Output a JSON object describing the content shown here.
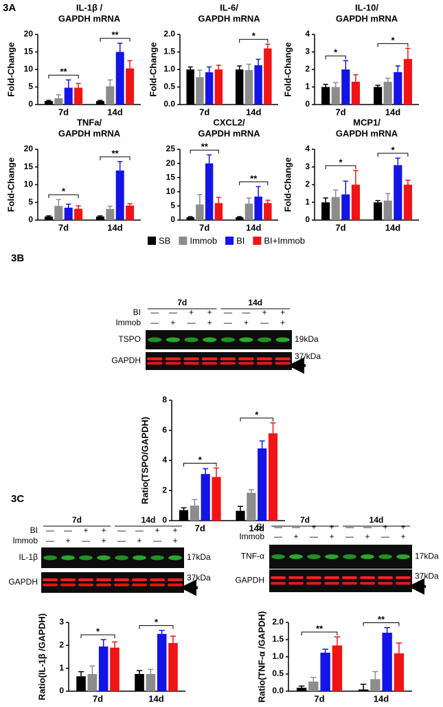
{
  "panels": [
    "3A",
    "3B",
    "3C"
  ],
  "legend": [
    {
      "name": "SB",
      "color": "#000000"
    },
    {
      "name": "Immob",
      "color": "#8c8c8c"
    },
    {
      "name": "BI",
      "color": "#1414e6"
    },
    {
      "name": "BI+Immob",
      "color": "#f01414"
    }
  ],
  "chart_data": [
    {
      "type": "bar",
      "title": [
        "IL-1β /",
        "GAPDH mRNA"
      ],
      "ylabel": "Fold-Change",
      "categories": [
        "7d",
        "14d"
      ],
      "ylim": [
        0,
        20
      ],
      "yticks": [
        0,
        5,
        10,
        15,
        20
      ],
      "series": [
        {
          "values": [
            1,
            1
          ],
          "errors": [
            0.2,
            0.2
          ]
        },
        {
          "values": [
            1.8,
            5.2
          ],
          "errors": [
            1,
            1.8
          ]
        },
        {
          "values": [
            4.8,
            15
          ],
          "errors": [
            2.2,
            2.5
          ]
        },
        {
          "values": [
            4.8,
            10.3
          ],
          "errors": [
            1.2,
            2.2
          ]
        }
      ],
      "annotations": [
        {
          "label": "**",
          "category": 0,
          "from": 0,
          "to": 3
        },
        {
          "label": "**",
          "category": 1,
          "from": 0,
          "to": 3
        }
      ]
    },
    {
      "type": "bar",
      "title": [
        "IL-6/",
        "GAPDH mRNA"
      ],
      "ylabel": "Fold-Change",
      "categories": [
        "7d",
        "14d"
      ],
      "ylim": [
        0,
        2
      ],
      "yticks": [
        {
          "value": 0,
          "label": "0.0"
        },
        0.5,
        {
          "value": 1,
          "label": "1.0"
        },
        1.5,
        {
          "value": 2,
          "label": "2.0"
        }
      ],
      "series": [
        {
          "values": [
            1.0,
            1.0
          ],
          "errors": [
            0.07,
            0.1
          ]
        },
        {
          "values": [
            0.78,
            0.98
          ],
          "errors": [
            0.2,
            0.17
          ]
        },
        {
          "values": [
            0.92,
            1.12
          ],
          "errors": [
            0.15,
            0.17
          ]
        },
        {
          "values": [
            1.0,
            1.6
          ],
          "errors": [
            0.12,
            0.12
          ]
        }
      ],
      "annotations": [
        {
          "label": "*",
          "category": 1,
          "from": 0,
          "to": 3
        }
      ]
    },
    {
      "type": "bar",
      "title": [
        "IL-10/",
        "GAPDH mRNA"
      ],
      "ylabel": "Fold-Change",
      "categories": [
        "7d",
        "14d"
      ],
      "ylim": [
        0,
        4
      ],
      "yticks": [
        0,
        1,
        2,
        3,
        4
      ],
      "series": [
        {
          "values": [
            1.0,
            1.0
          ],
          "errors": [
            0.15,
            0.1
          ]
        },
        {
          "values": [
            1.0,
            1.3
          ],
          "errors": [
            0.25,
            0.2
          ]
        },
        {
          "values": [
            2.0,
            1.85
          ],
          "errors": [
            0.5,
            0.35
          ]
        },
        {
          "values": [
            1.3,
            2.6
          ],
          "errors": [
            0.4,
            0.6
          ]
        }
      ],
      "annotations": [
        {
          "label": "*",
          "category": 0,
          "from": 0,
          "to": 2
        },
        {
          "label": "*",
          "category": 1,
          "from": 0,
          "to": 3
        }
      ]
    },
    {
      "type": "bar",
      "title": [
        "TNFa/",
        "GAPDH mRNA"
      ],
      "ylabel": "Fold-Change",
      "categories": [
        "7d",
        "14d"
      ],
      "ylim": [
        0,
        20
      ],
      "yticks": [
        0,
        5,
        10,
        15,
        20
      ],
      "series": [
        {
          "values": [
            1,
            1
          ],
          "errors": [
            0.2,
            0.2
          ]
        },
        {
          "values": [
            4,
            3.1
          ],
          "errors": [
            1.8,
            0.8
          ]
        },
        {
          "values": [
            3.5,
            14
          ],
          "errors": [
            1,
            2.5
          ]
        },
        {
          "values": [
            3.2,
            4.1
          ],
          "errors": [
            0.8,
            0.5
          ]
        }
      ],
      "annotations": [
        {
          "label": "*",
          "category": 0,
          "from": 0,
          "to": 3
        },
        {
          "label": "**",
          "category": 1,
          "from": 0,
          "to": 3
        }
      ]
    },
    {
      "type": "bar",
      "title": [
        "CXCL2/",
        "GAPDH mRNA"
      ],
      "categories": [
        "7d",
        "14d"
      ],
      "ylim": [
        0,
        25
      ],
      "yticks": [
        0,
        5,
        10,
        15,
        20,
        25
      ],
      "series": [
        {
          "values": [
            1,
            1
          ],
          "errors": [
            0.2,
            0.2
          ]
        },
        {
          "values": [
            5.5,
            5.8
          ],
          "errors": [
            3.5,
            2
          ]
        },
        {
          "values": [
            20,
            8.3
          ],
          "errors": [
            3,
            3.5
          ]
        },
        {
          "values": [
            6,
            6
          ],
          "errors": [
            2,
            1
          ]
        }
      ],
      "annotations": [
        {
          "label": "**",
          "category": 0,
          "from": 0,
          "to": 3
        },
        {
          "label": "**",
          "category": 1,
          "from": 0,
          "to": 3
        }
      ]
    },
    {
      "type": "bar",
      "title": [
        "MCP1/",
        "GAPDH mRNA"
      ],
      "ylabel": "Fold-Change",
      "categories": [
        "7d",
        "14d"
      ],
      "ylim": [
        0,
        4
      ],
      "yticks": [
        0,
        1,
        2,
        3,
        4
      ],
      "series": [
        {
          "values": [
            1,
            1
          ],
          "errors": [
            0.25,
            0.1
          ]
        },
        {
          "values": [
            1.3,
            1.1
          ],
          "errors": [
            0.4,
            0.4
          ]
        },
        {
          "values": [
            1.45,
            3.1
          ],
          "errors": [
            0.75,
            0.4
          ]
        },
        {
          "values": [
            2.0,
            2.0
          ],
          "errors": [
            0.8,
            0.25
          ]
        }
      ],
      "annotations": [
        {
          "label": "*",
          "category": 0,
          "from": 0,
          "to": 3
        },
        {
          "label": "*",
          "category": 1,
          "from": 0,
          "to": 3
        }
      ]
    },
    {
      "type": "bar",
      "ylabel": "Ratio(TSPO/GAPDH)",
      "categories": [
        "7d",
        "14d"
      ],
      "ylim": [
        0,
        8
      ],
      "yticks": [
        0,
        2,
        4,
        6,
        8
      ],
      "series": [
        {
          "values": [
            0.7,
            0.65
          ],
          "errors": [
            0.15,
            0.3
          ]
        },
        {
          "values": [
            1.0,
            1.85
          ],
          "errors": [
            0.4,
            0.2
          ]
        },
        {
          "values": [
            3.1,
            4.8
          ],
          "errors": [
            0.35,
            0.5
          ]
        },
        {
          "values": [
            2.9,
            5.8
          ],
          "errors": [
            0.6,
            0.7
          ]
        }
      ],
      "annotations": [
        {
          "label": "*",
          "category": 0,
          "from": 0,
          "to": 3
        },
        {
          "label": "*",
          "category": 1,
          "from": 0,
          "to": 3
        }
      ]
    },
    {
      "type": "bar",
      "ylabel": "Ratio(IL-1β /GAPDH)",
      "categories": [
        "7d",
        "14d"
      ],
      "ylim": [
        0,
        3
      ],
      "yticks": [
        0,
        1,
        2,
        3
      ],
      "series": [
        {
          "values": [
            0.65,
            0.75
          ],
          "errors": [
            0.2,
            0.15
          ]
        },
        {
          "values": [
            0.75,
            0.75
          ],
          "errors": [
            0.35,
            0.2
          ]
        },
        {
          "values": [
            1.95,
            2.5
          ],
          "errors": [
            0.3,
            0.15
          ]
        },
        {
          "values": [
            1.9,
            2.1
          ],
          "errors": [
            0.25,
            0.3
          ]
        }
      ],
      "annotations": [
        {
          "label": "*",
          "category": 0,
          "from": 0,
          "to": 3
        },
        {
          "label": "*",
          "category": 1,
          "from": 0,
          "to": 3
        }
      ]
    },
    {
      "type": "bar",
      "ylabel": "Ratio(TNF-α /GAPDH)",
      "categories": [
        "7d",
        "14d"
      ],
      "ylim": [
        0,
        2
      ],
      "yticks": [
        {
          "value": 0,
          "label": "0.0"
        },
        0.5,
        {
          "value": 1,
          "label": "1.0"
        },
        1.5,
        {
          "value": 2,
          "label": "2.0"
        }
      ],
      "series": [
        {
          "values": [
            0.1,
            0.05
          ],
          "errors": [
            0.05,
            0.15
          ]
        },
        {
          "values": [
            0.28,
            0.35
          ],
          "errors": [
            0.12,
            0.22
          ]
        },
        {
          "values": [
            1.12,
            1.7
          ],
          "errors": [
            0.1,
            0.15
          ]
        },
        {
          "values": [
            1.33,
            1.1
          ],
          "errors": [
            0.25,
            0.3
          ]
        }
      ],
      "annotations": [
        {
          "label": "**",
          "category": 0,
          "from": 0,
          "to": 3
        },
        {
          "label": "**",
          "category": 1,
          "from": 0,
          "to": 3
        }
      ]
    }
  ],
  "blots": [
    {
      "groups": [
        "7d",
        "14d"
      ],
      "rows": [
        {
          "label": "BI",
          "signs": [
            "—",
            "—",
            "+",
            "+",
            "—",
            "—",
            "+",
            "+"
          ]
        },
        {
          "label": "Immob",
          "signs": [
            "—",
            "+",
            "—",
            "+",
            "—",
            "+",
            "—",
            "+"
          ]
        }
      ],
      "bands": [
        {
          "label": "TSPO",
          "size": "19kDa"
        },
        {
          "label": "GAPDH",
          "size": "37/kDa"
        }
      ]
    },
    {
      "groups": [
        "7d",
        "14d"
      ],
      "rows": [
        {
          "label": "BI",
          "signs": [
            "—",
            "—",
            "+",
            "+",
            "—",
            "—",
            "+",
            "+"
          ]
        },
        {
          "label": "Immob",
          "signs": [
            "—",
            "+",
            "—",
            "+",
            "—",
            "+",
            "—",
            "+"
          ]
        }
      ],
      "bands": [
        {
          "label": "IL-1β",
          "size": "17kDa"
        },
        {
          "label": "GAPDH",
          "size": "37kDa"
        }
      ]
    },
    {
      "groups": [
        "7d",
        "14d"
      ],
      "rows": [
        {
          "label": "BI",
          "signs": [
            "—",
            "—",
            "+",
            "+",
            "—",
            "—",
            "+",
            "+"
          ]
        },
        {
          "label": "Immob",
          "signs": [
            "—",
            "+",
            "—",
            "+",
            "—",
            "+",
            "—",
            "+"
          ]
        }
      ],
      "bands": [
        {
          "label": "TNF-α",
          "size": "17kDa"
        },
        {
          "label": "GAPDH",
          "size": "37kDa"
        }
      ]
    }
  ]
}
